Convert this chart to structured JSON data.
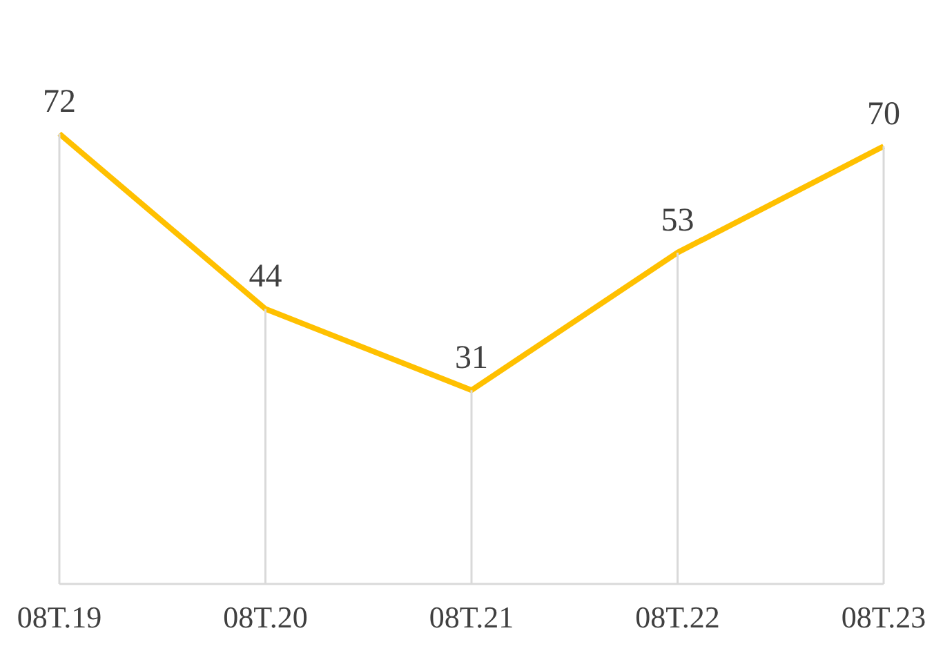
{
  "chart_data": {
    "type": "line",
    "categories": [
      "08T.19",
      "08T.20",
      "08T.21",
      "08T.22",
      "08T.23"
    ],
    "series": [
      {
        "color": "#ffc000",
        "values": [
          72,
          44,
          31,
          53,
          70
        ]
      }
    ],
    "data_labels": true,
    "grid": "x",
    "legend": false
  }
}
